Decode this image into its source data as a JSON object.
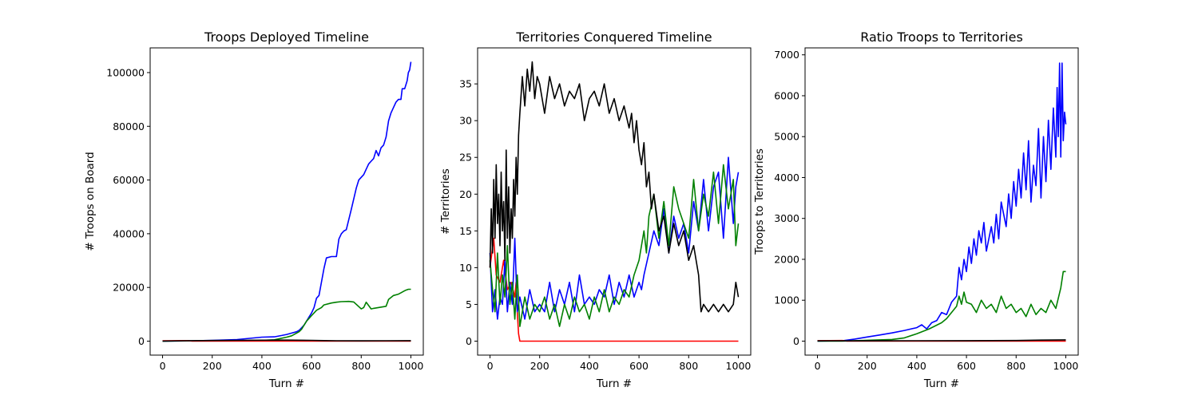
{
  "colors": {
    "blue": "#0000ff",
    "green": "#008000",
    "red": "#ff0000",
    "black": "#000000"
  },
  "chart_data": [
    {
      "type": "line",
      "title": "Troops Deployed Timeline",
      "xlabel": "Turn #",
      "ylabel": "# Troops on Board",
      "xlim": [
        -50,
        1050
      ],
      "ylim": [
        -5200,
        109200
      ],
      "xticks": [
        0,
        200,
        400,
        600,
        800,
        1000
      ],
      "yticks": [
        0,
        20000,
        40000,
        60000,
        80000,
        100000
      ],
      "grid": false,
      "series": [
        {
          "color": "#0000ff",
          "x": [
            0,
            100,
            200,
            300,
            400,
            450,
            480,
            500,
            520,
            540,
            550,
            560,
            570,
            580,
            590,
            600,
            610,
            620,
            630,
            640,
            650,
            660,
            680,
            700,
            710,
            720,
            730,
            740,
            760,
            780,
            790,
            800,
            810,
            820,
            830,
            840,
            850,
            860,
            870,
            880,
            890,
            900,
            910,
            920,
            930,
            940,
            950,
            960,
            965,
            975,
            985,
            990,
            995,
            1000
          ],
          "y": [
            0,
            100,
            300,
            600,
            1500,
            1600,
            2100,
            2500,
            3000,
            3500,
            4000,
            5000,
            6000,
            7500,
            9000,
            10500,
            12500,
            16000,
            17000,
            22000,
            27000,
            31000,
            31500,
            31500,
            38000,
            40000,
            41000,
            41500,
            49000,
            57000,
            60000,
            61000,
            62000,
            64000,
            66000,
            67000,
            68000,
            71000,
            69000,
            72000,
            73000,
            76000,
            82000,
            85000,
            87000,
            89000,
            90000,
            90000,
            94000,
            94000,
            97000,
            100000,
            101000,
            104000
          ]
        },
        {
          "color": "#008000",
          "x": [
            0,
            200,
            300,
            400,
            450,
            500,
            520,
            550,
            560,
            570,
            580,
            590,
            600,
            610,
            620,
            640,
            650,
            680,
            700,
            720,
            750,
            770,
            800,
            810,
            820,
            840,
            850,
            900,
            910,
            930,
            950,
            960,
            970,
            980,
            990,
            1000
          ],
          "y": [
            0,
            200,
            200,
            300,
            500,
            1500,
            2000,
            3500,
            4500,
            6000,
            7500,
            8500,
            9500,
            10500,
            11500,
            12500,
            13500,
            14200,
            14500,
            14700,
            14800,
            14600,
            12000,
            12500,
            14500,
            12000,
            12200,
            13000,
            15500,
            17000,
            17500,
            18000,
            18500,
            19000,
            19300,
            19300
          ]
        },
        {
          "color": "#ff0000",
          "x": [
            0,
            100,
            120,
            1000
          ],
          "y": [
            120,
            200,
            0,
            0
          ]
        },
        {
          "color": "#000000",
          "x": [
            0,
            100,
            200,
            300,
            400,
            500,
            600,
            650,
            700,
            800,
            900,
            1000
          ],
          "y": [
            40,
            150,
            250,
            300,
            350,
            380,
            300,
            200,
            150,
            120,
            150,
            180
          ]
        }
      ]
    },
    {
      "type": "line",
      "title": "Territories Conquered Timeline",
      "xlabel": "Turn #",
      "ylabel": "# Territories",
      "xlim": [
        -50,
        1050
      ],
      "ylim": [
        -1.9,
        39.9
      ],
      "xticks": [
        0,
        200,
        400,
        600,
        800,
        1000
      ],
      "yticks": [
        0,
        5,
        10,
        15,
        20,
        25,
        30,
        35
      ],
      "grid": false,
      "series": [
        {
          "color": "#ff0000",
          "x": [
            0,
            15,
            25,
            40,
            55,
            70,
            85,
            100,
            105,
            110,
            115,
            120,
            130,
            1000
          ],
          "y": [
            10,
            14,
            9,
            8,
            11,
            7,
            8,
            6,
            8,
            4,
            1,
            0,
            0,
            0
          ]
        },
        {
          "color": "#0000ff",
          "x": [
            0,
            10,
            20,
            30,
            40,
            50,
            60,
            70,
            80,
            90,
            100,
            110,
            120,
            140,
            160,
            180,
            200,
            220,
            240,
            260,
            280,
            300,
            320,
            340,
            360,
            380,
            400,
            420,
            440,
            460,
            480,
            500,
            520,
            540,
            560,
            580,
            600,
            610,
            620,
            640,
            660,
            680,
            700,
            720,
            740,
            760,
            780,
            800,
            820,
            840,
            860,
            880,
            900,
            920,
            940,
            960,
            980,
            990,
            1000
          ],
          "y": [
            12,
            4,
            7,
            3,
            6,
            5,
            11,
            4,
            8,
            5,
            14,
            4,
            6,
            3,
            7,
            4,
            5,
            4,
            8,
            4,
            7,
            5,
            8,
            4,
            9,
            5,
            6,
            5,
            7,
            6,
            9,
            5,
            8,
            6,
            9,
            6,
            8,
            7,
            9,
            12,
            15,
            13,
            18,
            12,
            17,
            14,
            16,
            12,
            19,
            15,
            22,
            15,
            21,
            23,
            14,
            25,
            16,
            21,
            23
          ]
        },
        {
          "color": "#008000",
          "x": [
            0,
            10,
            20,
            30,
            40,
            50,
            60,
            70,
            80,
            90,
            100,
            110,
            120,
            140,
            160,
            180,
            200,
            220,
            240,
            260,
            280,
            300,
            320,
            340,
            360,
            380,
            400,
            420,
            440,
            460,
            480,
            500,
            520,
            540,
            560,
            580,
            600,
            610,
            620,
            630,
            640,
            660,
            680,
            700,
            720,
            740,
            760,
            780,
            800,
            820,
            840,
            860,
            880,
            900,
            920,
            940,
            960,
            980,
            990,
            1000
          ],
          "y": [
            11,
            7,
            4,
            12,
            5,
            9,
            6,
            13,
            5,
            8,
            3,
            9,
            2,
            6,
            3,
            5,
            4,
            6,
            3,
            5,
            2,
            5,
            3,
            6,
            4,
            5,
            3,
            6,
            4,
            7,
            4,
            6,
            5,
            7,
            6,
            9,
            11,
            13,
            15,
            12,
            17,
            20,
            14,
            19,
            13,
            21,
            18,
            16,
            14,
            22,
            15,
            20,
            17,
            23,
            16,
            24,
            18,
            22,
            13,
            16
          ]
        },
        {
          "color": "#000000",
          "x": [
            0,
            5,
            10,
            15,
            20,
            25,
            30,
            35,
            40,
            45,
            50,
            55,
            60,
            65,
            70,
            75,
            80,
            85,
            90,
            95,
            100,
            105,
            110,
            115,
            120,
            130,
            140,
            150,
            160,
            170,
            180,
            190,
            200,
            220,
            240,
            260,
            280,
            300,
            320,
            340,
            360,
            380,
            400,
            420,
            440,
            460,
            480,
            500,
            520,
            540,
            560,
            570,
            580,
            590,
            600,
            610,
            620,
            630,
            640,
            650,
            660,
            680,
            700,
            720,
            740,
            760,
            780,
            800,
            820,
            840,
            850,
            860,
            880,
            900,
            920,
            940,
            960,
            980,
            990,
            1000
          ],
          "y": [
            10,
            18,
            12,
            22,
            14,
            24,
            16,
            20,
            13,
            23,
            15,
            19,
            11,
            26,
            14,
            21,
            12,
            18,
            14,
            22,
            17,
            25,
            20,
            28,
            31,
            36,
            32,
            37,
            34,
            38,
            33,
            36,
            35,
            31,
            36,
            33,
            35,
            32,
            34,
            33,
            35,
            30,
            33,
            34,
            32,
            35,
            31,
            33,
            30,
            32,
            29,
            31,
            27,
            30,
            26,
            24,
            27,
            21,
            23,
            18,
            20,
            15,
            17,
            12,
            16,
            13,
            15,
            11,
            13,
            9,
            4,
            5,
            4,
            5,
            4,
            5,
            4,
            5,
            8,
            6
          ]
        }
      ]
    },
    {
      "type": "line",
      "title": "Ratio Troops to Territories",
      "xlabel": "Turn #",
      "ylabel": "Troops to Territories",
      "xlim": [
        -50,
        1050
      ],
      "ylim": [
        -342,
        7170
      ],
      "xticks": [
        0,
        200,
        400,
        600,
        800,
        1000
      ],
      "yticks": [
        0,
        1000,
        2000,
        3000,
        4000,
        5000,
        6000,
        7000
      ],
      "grid": false,
      "series": [
        {
          "color": "#0000ff",
          "x": [
            0,
            100,
            150,
            200,
            250,
            300,
            350,
            400,
            420,
            440,
            460,
            480,
            500,
            520,
            540,
            560,
            570,
            580,
            590,
            600,
            610,
            620,
            630,
            640,
            650,
            660,
            670,
            680,
            700,
            710,
            720,
            730,
            740,
            760,
            770,
            780,
            790,
            800,
            810,
            820,
            830,
            840,
            850,
            860,
            870,
            880,
            890,
            900,
            910,
            920,
            930,
            940,
            950,
            960,
            965,
            970,
            975,
            980,
            985,
            990,
            995,
            1000
          ],
          "y": [
            0,
            10,
            50,
            100,
            150,
            200,
            260,
            330,
            400,
            300,
            450,
            500,
            700,
            650,
            950,
            1100,
            1800,
            1500,
            2000,
            1700,
            2300,
            1900,
            2500,
            2100,
            2700,
            2400,
            2900,
            2200,
            2800,
            2400,
            3100,
            2500,
            3400,
            2800,
            3600,
            3000,
            3900,
            3300,
            4200,
            3500,
            4600,
            3700,
            4900,
            3400,
            4300,
            3800,
            5200,
            3500,
            5000,
            3900,
            5400,
            4200,
            5700,
            4500,
            6200,
            5000,
            6800,
            4500,
            6800,
            4900,
            5600,
            5300
          ]
        },
        {
          "color": "#008000",
          "x": [
            0,
            100,
            200,
            300,
            350,
            400,
            450,
            500,
            520,
            540,
            560,
            570,
            580,
            590,
            600,
            620,
            640,
            660,
            680,
            700,
            720,
            740,
            760,
            780,
            800,
            820,
            840,
            860,
            880,
            900,
            920,
            940,
            960,
            980,
            990,
            1000
          ],
          "y": [
            0,
            0,
            20,
            40,
            80,
            180,
            300,
            450,
            550,
            700,
            850,
            1100,
            900,
            1200,
            950,
            900,
            700,
            1000,
            800,
            900,
            700,
            1100,
            800,
            900,
            700,
            800,
            600,
            900,
            650,
            800,
            700,
            1000,
            800,
            1300,
            1700,
            1700
          ]
        },
        {
          "color": "#ff0000",
          "x": [
            0,
            100,
            120,
            1000
          ],
          "y": [
            12,
            15,
            0,
            0
          ]
        },
        {
          "color": "#000000",
          "x": [
            0,
            200,
            400,
            600,
            800,
            900,
            1000
          ],
          "y": [
            5,
            8,
            10,
            12,
            15,
            25,
            30
          ]
        }
      ]
    }
  ]
}
